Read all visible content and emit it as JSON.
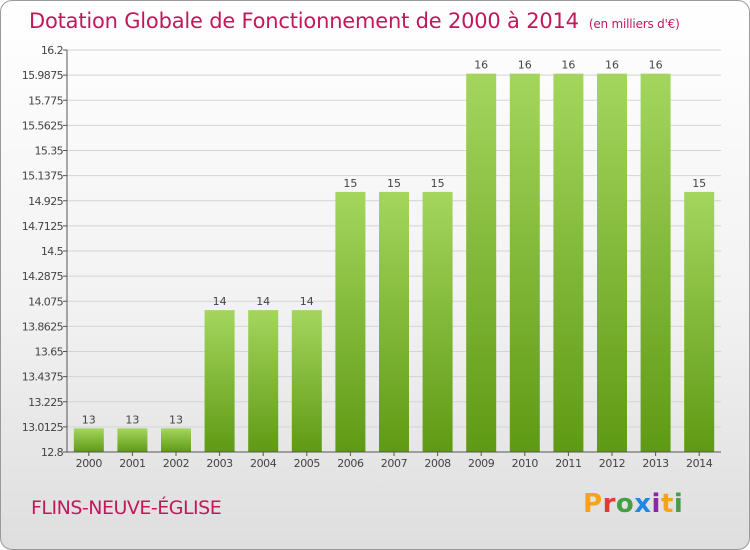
{
  "title": "Dotation Globale de Fonctionnement de 2000 à 2014",
  "unit_note": "(en milliers d'€)",
  "city": "FLINS-NEUVE-ÉGLISE",
  "logo": {
    "letters": [
      "P",
      "r",
      "o",
      "x",
      "i",
      "t",
      "i"
    ],
    "colors": [
      "#f7a21b",
      "#e53935",
      "#43a047",
      "#1e88e5",
      "#8e24aa",
      "#f7a21b",
      "#43a047"
    ]
  },
  "colors": {
    "accent": "#c2185b",
    "bar_top": "#a4d65e",
    "bar_bottom": "#5f9a14",
    "grid": "#d4d4d4"
  },
  "chart_data": {
    "type": "bar",
    "title": "Dotation Globale de Fonctionnement de 2000 à 2014",
    "xlabel": "",
    "ylabel": "",
    "ylim": [
      12.8,
      16.2
    ],
    "grid": true,
    "categories": [
      "2000",
      "2001",
      "2002",
      "2003",
      "2004",
      "2005",
      "2006",
      "2007",
      "2008",
      "2009",
      "2010",
      "2011",
      "2012",
      "2013",
      "2014"
    ],
    "values": [
      13,
      13,
      13,
      14,
      14,
      14,
      15,
      15,
      15,
      16,
      16,
      16,
      16,
      16,
      15
    ],
    "data_labels": [
      "13",
      "13",
      "13",
      "14",
      "14",
      "14",
      "15",
      "15",
      "15",
      "16",
      "16",
      "16",
      "16",
      "16",
      "15"
    ],
    "yticks": [
      12.8,
      13.0125,
      13.225,
      13.4375,
      13.65,
      13.8625,
      14.075,
      14.2875,
      14.5,
      14.7125,
      14.925,
      15.1375,
      15.35,
      15.5625,
      15.775,
      15.9875,
      16.2
    ],
    "ytick_labels": [
      "12.8",
      "13.0125",
      "13.225",
      "13.4375",
      "13.65",
      "13.8625",
      "14.075",
      "14.2875",
      "14.5",
      "14.7125",
      "14.925",
      "15.1375",
      "15.35",
      "15.5625",
      "15.775",
      "15.9875",
      "16.2"
    ]
  }
}
